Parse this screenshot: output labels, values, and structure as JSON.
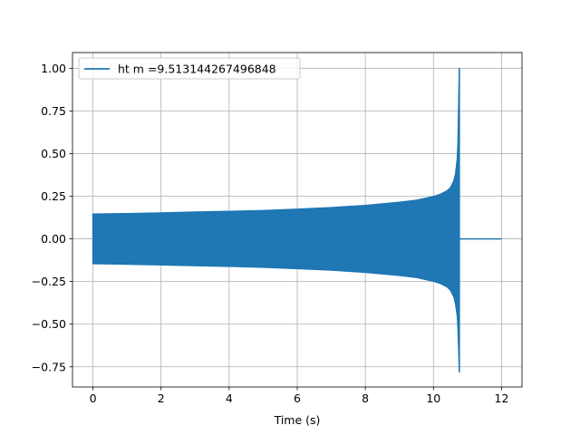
{
  "chart_data": {
    "type": "line",
    "xlabel": "Time (s)",
    "ylabel": "",
    "xlim": [
      -0.6,
      12.6
    ],
    "ylim": [
      -0.868,
      1.092
    ],
    "xticks": [
      0,
      2,
      4,
      6,
      8,
      10,
      12
    ],
    "xtick_labels": [
      "0",
      "2",
      "4",
      "6",
      "8",
      "10",
      "12"
    ],
    "yticks": [
      -0.75,
      -0.5,
      -0.25,
      0.0,
      0.25,
      0.5,
      0.75,
      1.0
    ],
    "ytick_labels": [
      "−0.75",
      "−0.50",
      "−0.25",
      "0.00",
      "0.25",
      "0.50",
      "0.75",
      "1.00"
    ],
    "grid": true,
    "legend_placement": "top-left",
    "series": [
      {
        "name": "ht m =9.513144267496848",
        "color": "#1f77b4",
        "envelope": {
          "x": [
            0.0,
            1.0,
            2.0,
            3.0,
            4.0,
            5.0,
            6.0,
            7.0,
            8.0,
            9.0,
            9.5,
            10.0,
            10.2,
            10.4,
            10.5,
            10.6,
            10.65,
            10.7,
            10.72,
            10.74,
            10.76
          ],
          "upper": [
            0.145,
            0.148,
            0.152,
            0.157,
            0.161,
            0.166,
            0.174,
            0.183,
            0.196,
            0.214,
            0.226,
            0.248,
            0.261,
            0.281,
            0.3,
            0.34,
            0.382,
            0.47,
            0.56,
            0.78,
            1.0
          ],
          "lower": [
            -0.145,
            -0.148,
            -0.152,
            -0.157,
            -0.161,
            -0.166,
            -0.174,
            -0.183,
            -0.196,
            -0.214,
            -0.226,
            -0.248,
            -0.261,
            -0.281,
            -0.3,
            -0.34,
            -0.382,
            -0.45,
            -0.52,
            -0.64,
            -0.78
          ]
        },
        "flat": {
          "x": [
            10.76,
            12.0
          ],
          "y": [
            0.0,
            0.0
          ]
        }
      }
    ]
  }
}
